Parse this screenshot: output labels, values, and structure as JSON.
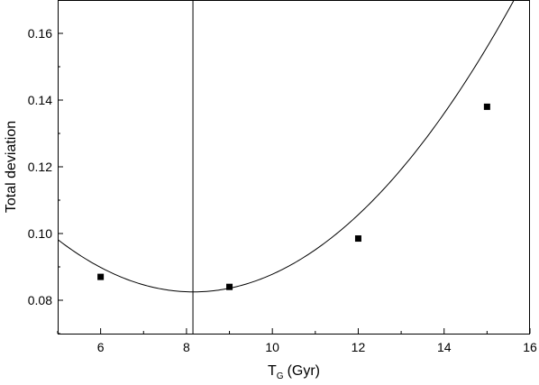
{
  "chart_data": {
    "type": "scatter",
    "title": "",
    "xlabel": {
      "main": "T",
      "subscript": "G",
      "unit": "(Gyr)"
    },
    "ylabel": "Total deviation",
    "xlim": [
      5,
      16
    ],
    "ylim": [
      0.07,
      0.17
    ],
    "x_ticks": [
      6,
      8,
      10,
      12,
      14,
      16
    ],
    "x_tick_labels": [
      "6",
      "8",
      "10",
      "12",
      "14",
      "16"
    ],
    "y_ticks": [
      0.08,
      0.1,
      0.12,
      0.14,
      0.16
    ],
    "y_tick_labels": [
      "0.08",
      "0.10",
      "0.12",
      "0.14",
      "0.16"
    ],
    "grid": false,
    "series": [
      {
        "style": "markers",
        "marker": "square",
        "color": "#000000",
        "points": [
          {
            "x": 6,
            "y": 0.087
          },
          {
            "x": 9,
            "y": 0.084
          },
          {
            "x": 12,
            "y": 0.0985
          },
          {
            "x": 15,
            "y": 0.138
          }
        ]
      },
      {
        "style": "line",
        "color": "#000000",
        "fit": "quadratic",
        "coefficients": {
          "a": 0.00157,
          "b": -0.02563,
          "c": 0.1871
        },
        "x_range": [
          5,
          16
        ]
      }
    ],
    "reference_line": {
      "orientation": "vertical",
      "x": 8.15,
      "color": "#000000"
    }
  }
}
